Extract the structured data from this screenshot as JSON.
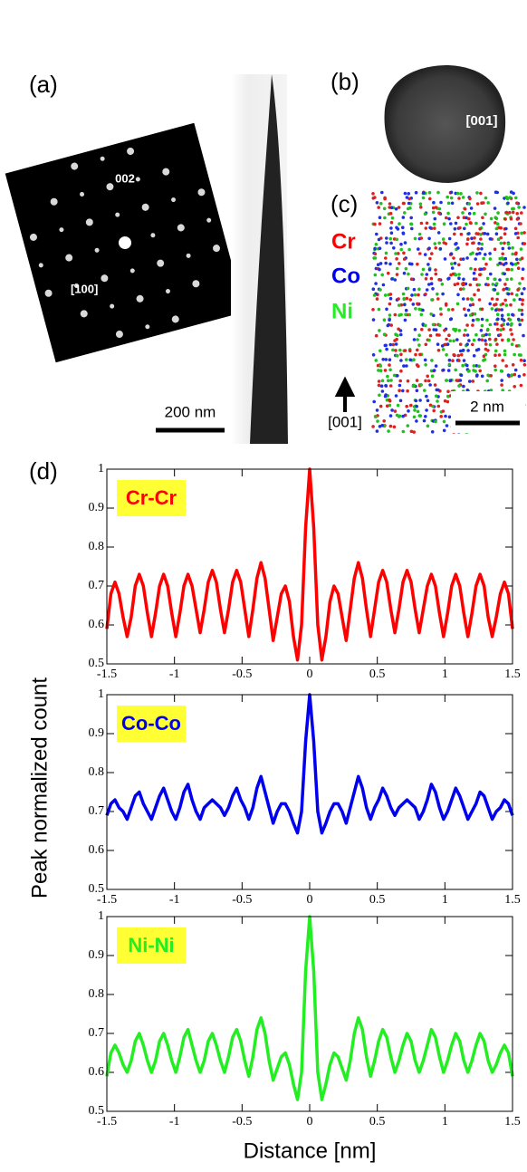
{
  "panels": {
    "a": {
      "label": "(a)",
      "spot_label": "002",
      "zone_axis": "[100]",
      "scale_bar": "200 nm"
    },
    "b": {
      "label": "(b)",
      "zone_axis": "[001]"
    },
    "c": {
      "label": "(c)",
      "elements": [
        "Cr",
        "Co",
        "Ni"
      ],
      "direction": "[001]",
      "scale_bar": "2 nm"
    },
    "d": {
      "label": "(d)"
    }
  },
  "ylabel": "Peak normalized count",
  "xlabel": "Distance [nm]",
  "chart_data": [
    {
      "type": "line",
      "annotation": "Cr-Cr",
      "color": "#ff0000",
      "x": [
        -1.5,
        -1.47,
        -1.44,
        -1.41,
        -1.38,
        -1.35,
        -1.32,
        -1.29,
        -1.26,
        -1.23,
        -1.2,
        -1.17,
        -1.14,
        -1.11,
        -1.08,
        -1.05,
        -1.02,
        -0.99,
        -0.96,
        -0.93,
        -0.9,
        -0.87,
        -0.84,
        -0.81,
        -0.78,
        -0.75,
        -0.72,
        -0.69,
        -0.66,
        -0.63,
        -0.6,
        -0.57,
        -0.54,
        -0.51,
        -0.48,
        -0.45,
        -0.42,
        -0.39,
        -0.36,
        -0.33,
        -0.3,
        -0.27,
        -0.24,
        -0.21,
        -0.18,
        -0.15,
        -0.12,
        -0.09,
        -0.06,
        -0.03,
        0,
        0.03,
        0.06,
        0.09,
        0.12,
        0.15,
        0.18,
        0.21,
        0.24,
        0.27,
        0.3,
        0.33,
        0.36,
        0.39,
        0.42,
        0.45,
        0.48,
        0.51,
        0.54,
        0.57,
        0.6,
        0.63,
        0.66,
        0.69,
        0.72,
        0.75,
        0.78,
        0.81,
        0.84,
        0.87,
        0.9,
        0.93,
        0.96,
        0.99,
        1.02,
        1.05,
        1.08,
        1.11,
        1.14,
        1.17,
        1.2,
        1.23,
        1.26,
        1.29,
        1.32,
        1.35,
        1.38,
        1.41,
        1.44,
        1.47,
        1.5
      ],
      "values": [
        0.59,
        0.68,
        0.71,
        0.68,
        0.62,
        0.57,
        0.62,
        0.7,
        0.73,
        0.7,
        0.63,
        0.57,
        0.63,
        0.7,
        0.73,
        0.7,
        0.63,
        0.57,
        0.63,
        0.7,
        0.73,
        0.7,
        0.64,
        0.58,
        0.64,
        0.71,
        0.74,
        0.71,
        0.64,
        0.58,
        0.64,
        0.71,
        0.74,
        0.71,
        0.64,
        0.57,
        0.64,
        0.72,
        0.76,
        0.72,
        0.64,
        0.56,
        0.62,
        0.68,
        0.7,
        0.66,
        0.57,
        0.51,
        0.6,
        0.85,
        1.0,
        0.85,
        0.6,
        0.51,
        0.57,
        0.66,
        0.7,
        0.68,
        0.62,
        0.56,
        0.64,
        0.72,
        0.76,
        0.72,
        0.64,
        0.57,
        0.64,
        0.71,
        0.74,
        0.71,
        0.64,
        0.58,
        0.64,
        0.71,
        0.74,
        0.71,
        0.64,
        0.58,
        0.64,
        0.7,
        0.73,
        0.7,
        0.63,
        0.57,
        0.63,
        0.7,
        0.73,
        0.7,
        0.63,
        0.57,
        0.63,
        0.7,
        0.73,
        0.7,
        0.62,
        0.57,
        0.62,
        0.68,
        0.71,
        0.68,
        0.59
      ],
      "xlim": [
        -1.5,
        1.5
      ],
      "ylim": [
        0.5,
        1
      ],
      "xticks": [
        -1.5,
        -1,
        -0.5,
        0,
        0.5,
        1,
        1.5
      ],
      "yticks": [
        0.5,
        0.6,
        0.7,
        0.8,
        0.9,
        1
      ]
    },
    {
      "type": "line",
      "annotation": "Co-Co",
      "color": "#0000ee",
      "x": [
        -1.5,
        -1.47,
        -1.44,
        -1.41,
        -1.38,
        -1.35,
        -1.32,
        -1.29,
        -1.26,
        -1.23,
        -1.2,
        -1.17,
        -1.14,
        -1.11,
        -1.08,
        -1.05,
        -1.02,
        -0.99,
        -0.96,
        -0.93,
        -0.9,
        -0.87,
        -0.84,
        -0.81,
        -0.78,
        -0.75,
        -0.72,
        -0.69,
        -0.66,
        -0.63,
        -0.6,
        -0.57,
        -0.54,
        -0.51,
        -0.48,
        -0.45,
        -0.42,
        -0.39,
        -0.36,
        -0.33,
        -0.3,
        -0.27,
        -0.24,
        -0.21,
        -0.18,
        -0.15,
        -0.12,
        -0.09,
        -0.06,
        -0.03,
        0,
        0.03,
        0.06,
        0.09,
        0.12,
        0.15,
        0.18,
        0.21,
        0.24,
        0.27,
        0.3,
        0.33,
        0.36,
        0.39,
        0.42,
        0.45,
        0.48,
        0.51,
        0.54,
        0.57,
        0.6,
        0.63,
        0.66,
        0.69,
        0.72,
        0.75,
        0.78,
        0.81,
        0.84,
        0.87,
        0.9,
        0.93,
        0.96,
        0.99,
        1.02,
        1.05,
        1.08,
        1.11,
        1.14,
        1.17,
        1.2,
        1.23,
        1.26,
        1.29,
        1.32,
        1.35,
        1.38,
        1.41,
        1.44,
        1.47,
        1.5
      ],
      "values": [
        0.69,
        0.72,
        0.73,
        0.71,
        0.7,
        0.68,
        0.71,
        0.74,
        0.75,
        0.72,
        0.7,
        0.68,
        0.71,
        0.74,
        0.76,
        0.73,
        0.7,
        0.68,
        0.71,
        0.75,
        0.77,
        0.73,
        0.7,
        0.68,
        0.71,
        0.72,
        0.73,
        0.72,
        0.71,
        0.69,
        0.71,
        0.74,
        0.76,
        0.73,
        0.71,
        0.68,
        0.71,
        0.76,
        0.79,
        0.75,
        0.71,
        0.67,
        0.7,
        0.72,
        0.72,
        0.7,
        0.67,
        0.645,
        0.7,
        0.88,
        1.0,
        0.88,
        0.7,
        0.645,
        0.67,
        0.7,
        0.72,
        0.72,
        0.7,
        0.67,
        0.71,
        0.75,
        0.79,
        0.76,
        0.71,
        0.68,
        0.71,
        0.73,
        0.76,
        0.74,
        0.71,
        0.69,
        0.71,
        0.72,
        0.73,
        0.72,
        0.71,
        0.68,
        0.7,
        0.73,
        0.77,
        0.75,
        0.71,
        0.68,
        0.7,
        0.73,
        0.76,
        0.74,
        0.71,
        0.68,
        0.7,
        0.72,
        0.75,
        0.74,
        0.71,
        0.68,
        0.7,
        0.71,
        0.73,
        0.72,
        0.69
      ],
      "xlim": [
        -1.5,
        1.5
      ],
      "ylim": [
        0.5,
        1
      ],
      "xticks": [
        -1.5,
        -1,
        -0.5,
        0,
        0.5,
        1,
        1.5
      ],
      "yticks": [
        0.5,
        0.6,
        0.7,
        0.8,
        0.9,
        1
      ]
    },
    {
      "type": "line",
      "annotation": "Ni-Ni",
      "color": "#22ee22",
      "x": [
        -1.5,
        -1.47,
        -1.44,
        -1.41,
        -1.38,
        -1.35,
        -1.32,
        -1.29,
        -1.26,
        -1.23,
        -1.2,
        -1.17,
        -1.14,
        -1.11,
        -1.08,
        -1.05,
        -1.02,
        -0.99,
        -0.96,
        -0.93,
        -0.9,
        -0.87,
        -0.84,
        -0.81,
        -0.78,
        -0.75,
        -0.72,
        -0.69,
        -0.66,
        -0.63,
        -0.6,
        -0.57,
        -0.54,
        -0.51,
        -0.48,
        -0.45,
        -0.42,
        -0.39,
        -0.36,
        -0.33,
        -0.3,
        -0.27,
        -0.24,
        -0.21,
        -0.18,
        -0.15,
        -0.12,
        -0.09,
        -0.06,
        -0.03,
        0,
        0.03,
        0.06,
        0.09,
        0.12,
        0.15,
        0.18,
        0.21,
        0.24,
        0.27,
        0.3,
        0.33,
        0.36,
        0.39,
        0.42,
        0.45,
        0.48,
        0.51,
        0.54,
        0.57,
        0.6,
        0.63,
        0.66,
        0.69,
        0.72,
        0.75,
        0.78,
        0.81,
        0.84,
        0.87,
        0.9,
        0.93,
        0.96,
        0.99,
        1.02,
        1.05,
        1.08,
        1.11,
        1.14,
        1.17,
        1.2,
        1.23,
        1.26,
        1.29,
        1.32,
        1.35,
        1.38,
        1.41,
        1.44,
        1.47,
        1.5
      ],
      "values": [
        0.59,
        0.65,
        0.67,
        0.65,
        0.62,
        0.6,
        0.63,
        0.68,
        0.7,
        0.67,
        0.63,
        0.6,
        0.63,
        0.68,
        0.7,
        0.67,
        0.63,
        0.6,
        0.64,
        0.69,
        0.71,
        0.67,
        0.63,
        0.6,
        0.63,
        0.68,
        0.7,
        0.67,
        0.63,
        0.6,
        0.64,
        0.69,
        0.71,
        0.68,
        0.63,
        0.59,
        0.64,
        0.71,
        0.74,
        0.7,
        0.63,
        0.58,
        0.61,
        0.64,
        0.65,
        0.62,
        0.57,
        0.53,
        0.6,
        0.86,
        1.0,
        0.86,
        0.6,
        0.53,
        0.57,
        0.62,
        0.65,
        0.64,
        0.61,
        0.58,
        0.63,
        0.7,
        0.74,
        0.71,
        0.64,
        0.59,
        0.63,
        0.68,
        0.71,
        0.69,
        0.64,
        0.6,
        0.63,
        0.67,
        0.7,
        0.68,
        0.63,
        0.6,
        0.63,
        0.67,
        0.71,
        0.69,
        0.64,
        0.6,
        0.63,
        0.67,
        0.7,
        0.68,
        0.63,
        0.6,
        0.63,
        0.67,
        0.7,
        0.68,
        0.63,
        0.6,
        0.62,
        0.65,
        0.67,
        0.65,
        0.59
      ],
      "xlim": [
        -1.5,
        1.5
      ],
      "ylim": [
        0.5,
        1
      ],
      "xticks": [
        -1.5,
        -1,
        -0.5,
        0,
        0.5,
        1,
        1.5
      ],
      "yticks": [
        0.5,
        0.6,
        0.7,
        0.8,
        0.9,
        1
      ]
    }
  ]
}
